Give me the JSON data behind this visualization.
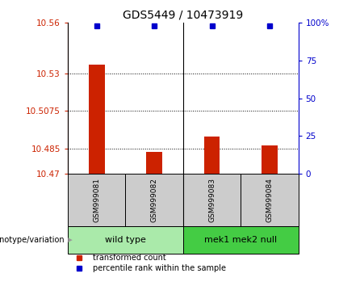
{
  "title": "GDS5449 / 10473919",
  "samples": [
    "GSM999081",
    "GSM999082",
    "GSM999083",
    "GSM999084"
  ],
  "bar_values": [
    10.535,
    10.483,
    10.492,
    10.487
  ],
  "percentile_values": [
    98,
    98,
    98,
    98
  ],
  "baseline": 10.47,
  "ylim_left": [
    10.47,
    10.56
  ],
  "ylim_right": [
    0,
    100
  ],
  "yticks_left": [
    10.47,
    10.485,
    10.5075,
    10.53,
    10.56
  ],
  "ytick_labels_left": [
    "10.47",
    "10.485",
    "10.5075",
    "10.53",
    "10.56"
  ],
  "yticks_right": [
    0,
    25,
    50,
    75,
    100
  ],
  "ytick_labels_right": [
    "0",
    "25",
    "50",
    "75",
    "100%"
  ],
  "bar_color": "#cc2200",
  "marker_color": "#0000cc",
  "groups": [
    {
      "label": "wild type",
      "indices": [
        0,
        1
      ],
      "color": "#aaeaaa"
    },
    {
      "label": "mek1 mek2 null",
      "indices": [
        2,
        3
      ],
      "color": "#44cc44"
    }
  ],
  "group_label": "genotype/variation",
  "legend_items": [
    {
      "label": "transformed count",
      "color": "#cc2200"
    },
    {
      "label": "percentile rank within the sample",
      "color": "#0000cc"
    }
  ],
  "title_fontsize": 10,
  "tick_fontsize": 7.5,
  "label_fontsize": 7,
  "bar_width": 0.28,
  "background_color": "#ffffff",
  "sample_box_color": "#cccccc",
  "arrow_color": "#999999"
}
